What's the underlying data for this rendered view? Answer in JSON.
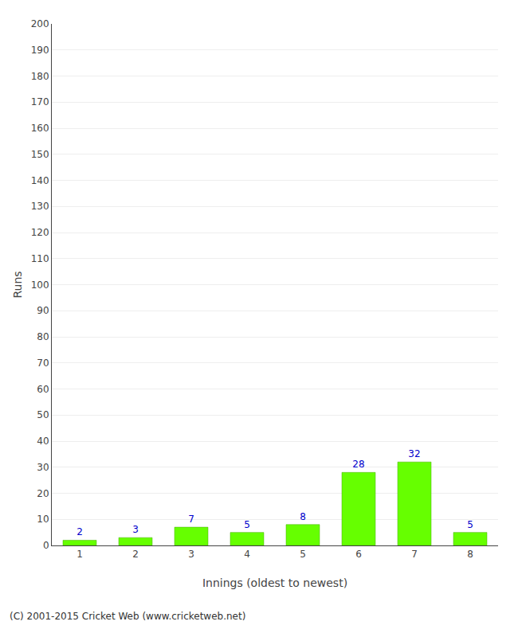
{
  "chart_data": {
    "type": "bar",
    "categories": [
      "1",
      "2",
      "3",
      "4",
      "5",
      "6",
      "7",
      "8"
    ],
    "values": [
      2,
      3,
      7,
      5,
      8,
      28,
      32,
      5
    ],
    "color": "#66ff00",
    "xlabel": "Innings (oldest to newest)",
    "ylabel": "Runs",
    "ylim": [
      0,
      200
    ],
    "yticks": [
      0,
      10,
      20,
      30,
      40,
      50,
      60,
      70,
      80,
      90,
      100,
      110,
      120,
      130,
      140,
      150,
      160,
      170,
      180,
      190,
      200
    ],
    "grid": true,
    "data_labels": true,
    "annotations": [
      "(C) 2001-2015 Cricket Web (www.cricketweb.net)"
    ]
  }
}
